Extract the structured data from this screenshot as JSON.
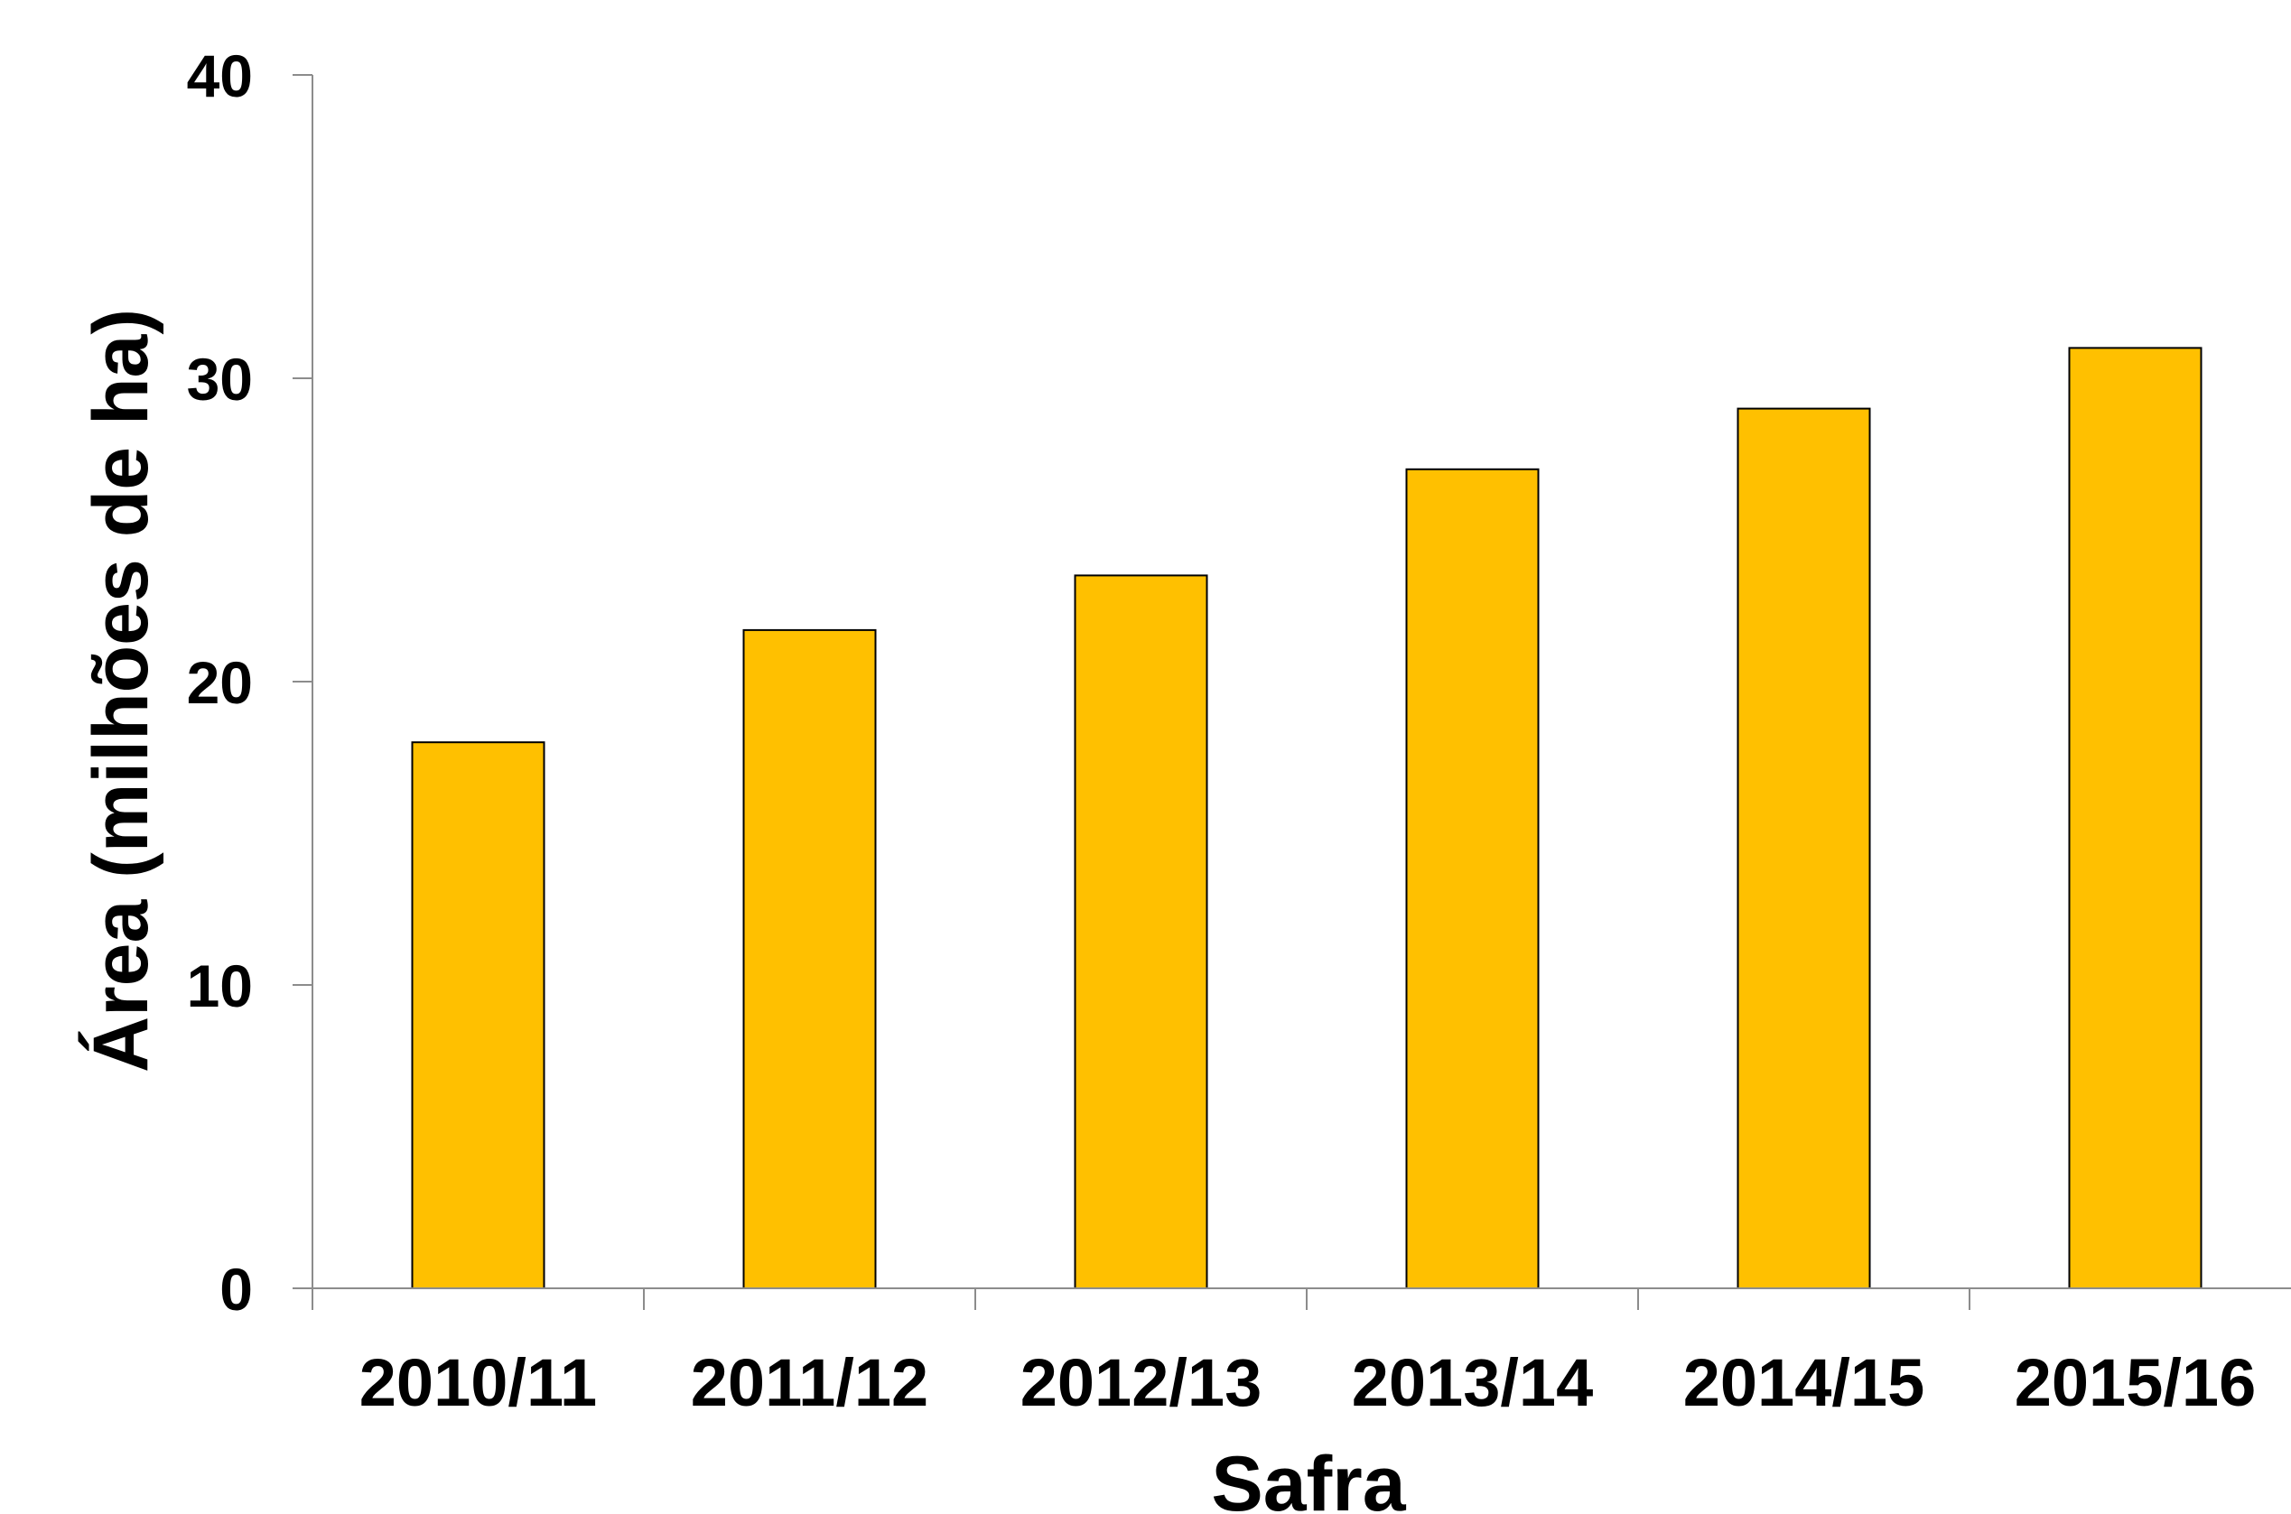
{
  "chart_data": {
    "type": "bar",
    "categories": [
      "2010/11",
      "2011/12",
      "2012/13",
      "2013/14",
      "2014/15",
      "2015/16"
    ],
    "values": [
      18.0,
      21.7,
      23.5,
      27.0,
      29.0,
      31.0
    ],
    "title": "",
    "xlabel": "Safra",
    "ylabel": "Área (milhões de ha)",
    "ylim": [
      0,
      40
    ],
    "yticks": [
      0,
      10,
      20,
      30,
      40
    ],
    "bar_color": "#FFC000",
    "bar_border_color": "#000000",
    "axis_color": "#8C8C8C",
    "grid": false,
    "legend": "none"
  }
}
